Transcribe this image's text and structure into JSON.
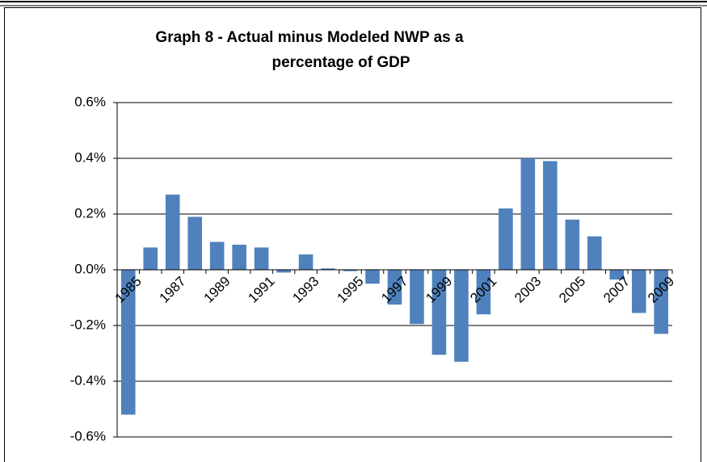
{
  "chart_data": {
    "type": "bar",
    "title": [
      "Graph 8 - Actual minus Modeled NWP as a",
      "percentage of GDP"
    ],
    "categories": [
      "1985",
      null,
      "1987",
      null,
      "1989",
      null,
      "1991",
      null,
      "1993",
      null,
      "1995",
      null,
      "1997",
      null,
      "1999",
      null,
      "2001",
      null,
      "2003",
      null,
      "2005",
      null,
      "2007",
      null,
      "2009"
    ],
    "values": [
      -0.52,
      0.08,
      0.27,
      0.19,
      0.1,
      0.09,
      0.08,
      -0.01,
      0.055,
      0.005,
      -0.005,
      -0.05,
      -0.125,
      -0.195,
      -0.305,
      -0.33,
      -0.16,
      0.22,
      0.4,
      0.39,
      0.18,
      0.12,
      -0.035,
      -0.155,
      -0.23
    ],
    "color": "#4f81bd",
    "ylim": [
      -0.6,
      0.6
    ],
    "yticks": [
      {
        "value": -0.6,
        "label": "-0.6%"
      },
      {
        "value": -0.4,
        "label": "-0.4%"
      },
      {
        "value": -0.2,
        "label": "-0.2%"
      },
      {
        "value": 0,
        "label": "0.0%"
      },
      {
        "value": 0.2,
        "label": "0.2%"
      },
      {
        "value": 0.4,
        "label": "0.4%"
      },
      {
        "value": 0.6,
        "label": "0.6%"
      }
    ],
    "grid": true
  }
}
